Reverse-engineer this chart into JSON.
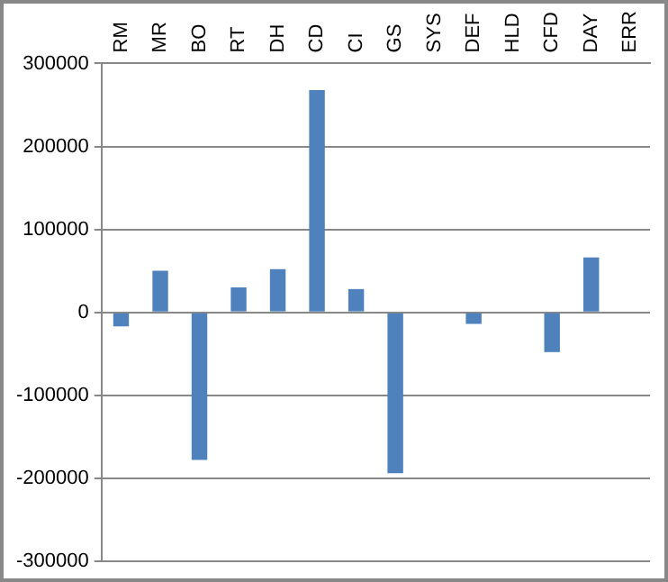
{
  "chart_data": {
    "type": "bar",
    "categories": [
      "RM",
      "MR",
      "BO",
      "RT",
      "DH",
      "CD",
      "CI",
      "GS",
      "SYS",
      "DEF",
      "HLD",
      "CFD",
      "DAY",
      "ERR"
    ],
    "values": [
      -17000,
      50000,
      -178000,
      30000,
      52000,
      268000,
      28000,
      -194000,
      0,
      -14000,
      0,
      -48000,
      66000,
      0
    ],
    "color": "#4f81bd",
    "ylim": [
      -300000,
      300000
    ],
    "yticks": [
      -300000,
      -200000,
      -100000,
      0,
      100000,
      200000,
      300000
    ],
    "grid": "y",
    "legend": false
  }
}
